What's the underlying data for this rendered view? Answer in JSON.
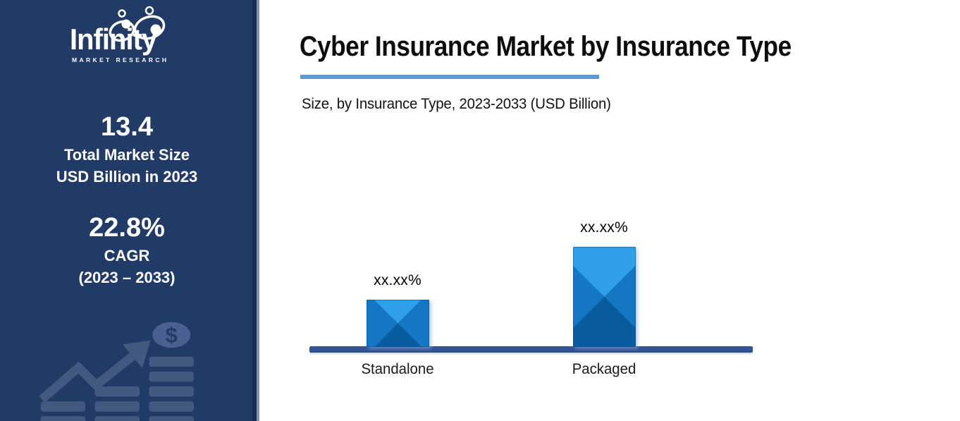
{
  "sidebar": {
    "logo": {
      "name": "Infinity",
      "tagline": "MARKET RESEARCH"
    },
    "stats": [
      {
        "value": "13.4",
        "line1": "Total Market Size",
        "line2": "USD Billion in 2023"
      },
      {
        "value": "22.8%",
        "line1": "CAGR",
        "line2": "(2023 – 2033)"
      }
    ],
    "decoration": "growth-chart-with-dollar-coin"
  },
  "header": {
    "title": "Cyber Insurance Market by Insurance Type",
    "subtitle": "Size, by Insurance Type, 2023-2033 (USD Billion)"
  },
  "chart_data": {
    "type": "bar",
    "title": "Cyber Insurance Market by Insurance Type",
    "subtitle": "Size, by Insurance Type, 2023-2033 (USD Billion)",
    "categories": [
      "Standalone",
      "Packaged"
    ],
    "value_labels": [
      "xx.xx%",
      "xx.xx%"
    ],
    "values_masked": true,
    "relative_heights": [
      0.47,
      1.0
    ],
    "ylabel": "",
    "xlabel": "",
    "grid": false,
    "legend": false
  },
  "colors": {
    "sidebar_bg": "#223A66",
    "accent_line": "#5B9BD5",
    "bar_top": "#2FA0E8",
    "bar_side": "#1377C4",
    "bar_bottom": "#0B5C9F",
    "axis_line": "#2C4E8C",
    "sidebar_art": "#44597F",
    "text_light": "#FFFFFF",
    "text_dark": "#0D0D0D"
  },
  "icons": {
    "logo_icon": "infinity-symbol-with-people",
    "bottom_icon": "growth-arrow-and-coin-stacks",
    "coin_glyph": "$"
  }
}
